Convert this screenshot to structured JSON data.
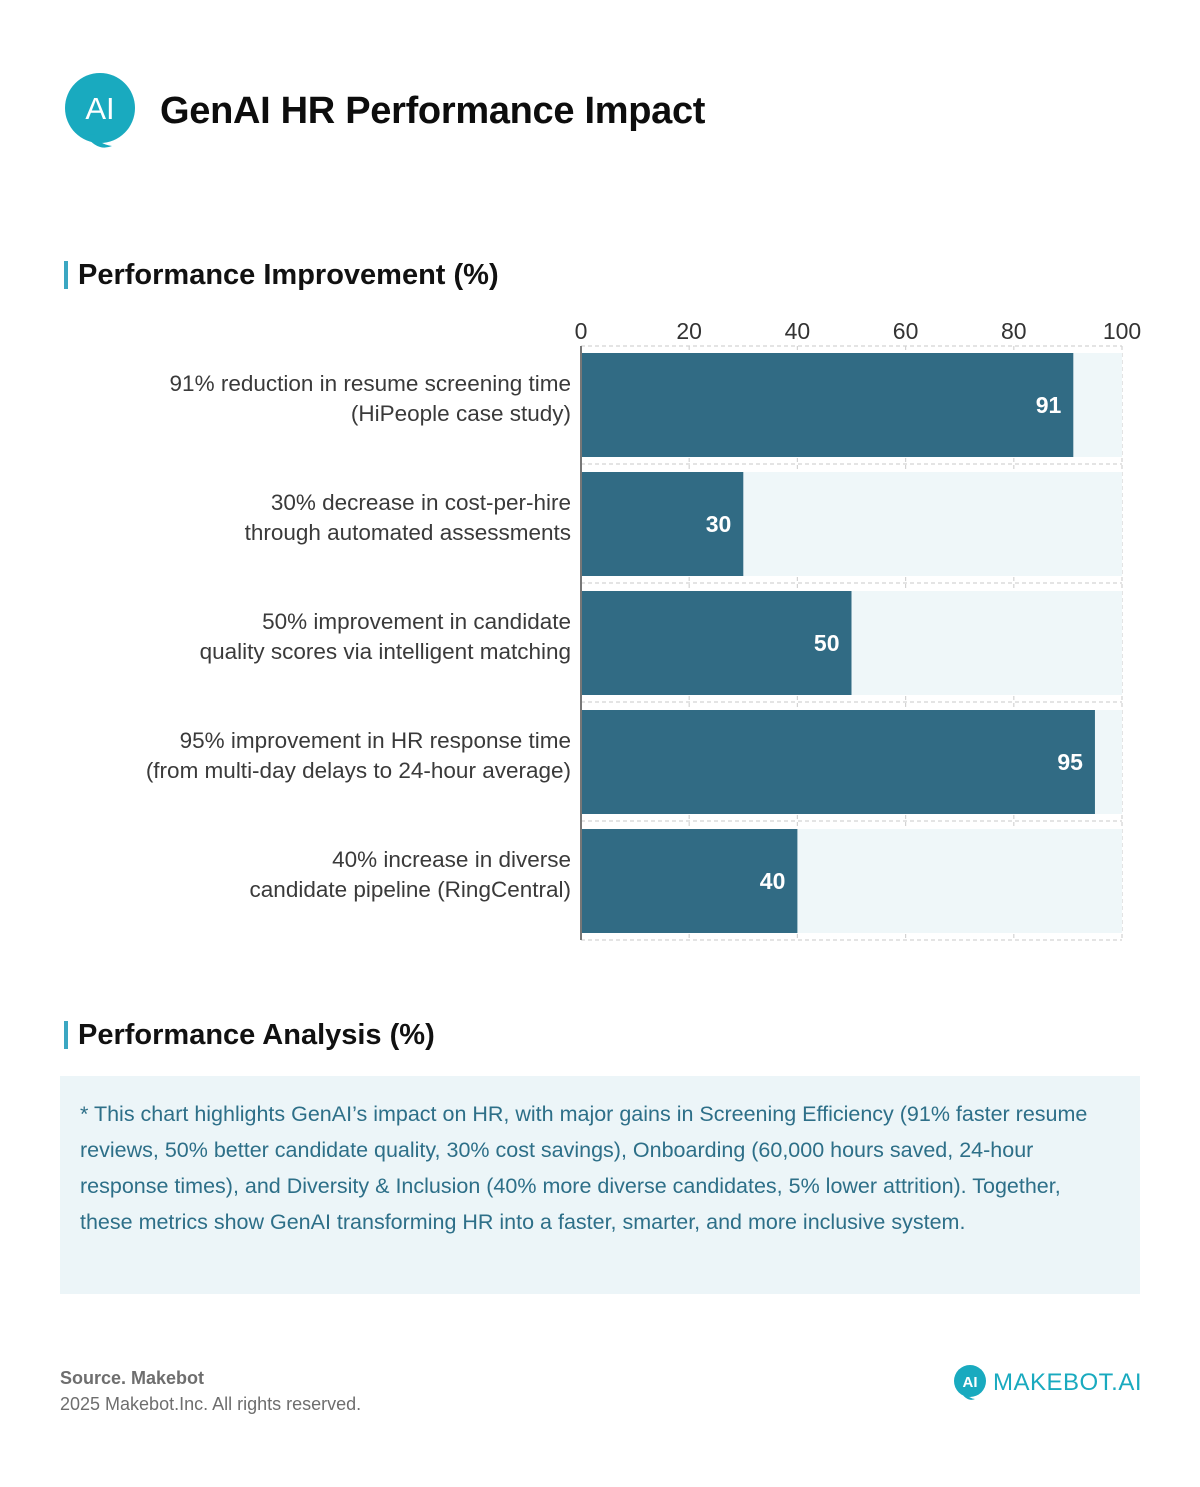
{
  "header": {
    "logo_text": "AI",
    "title": "GenAI HR Performance Impact"
  },
  "chart_data": {
    "type": "bar",
    "orientation": "horizontal",
    "title": "Performance Improvement (%)",
    "xlabel": "",
    "ylabel": "",
    "xlim": [
      0,
      100
    ],
    "xticks": [
      0,
      20,
      40,
      60,
      80,
      100
    ],
    "axis_position": "top",
    "grid": true,
    "categories": [
      [
        "91% reduction in resume screening time",
        "(HiPeople case study)"
      ],
      [
        "30% decrease in cost-per-hire",
        "through automated assessments"
      ],
      [
        "50% improvement in candidate",
        "quality scores via intelligent matching"
      ],
      [
        "95% improvement in HR response time",
        "(from multi-day delays to 24-hour average)"
      ],
      [
        "40% increase in diverse",
        "candidate pipeline (RingCentral)"
      ]
    ],
    "values": [
      91,
      30,
      50,
      95,
      40
    ],
    "colors": {
      "bar": "#316b84",
      "track": "#eff7f9",
      "grid": "#d3d3d3",
      "axis": "#777777",
      "value_label": "#ffffff"
    }
  },
  "analysis": {
    "title": "Performance Analysis (%)",
    "text": "* This chart highlights GenAI’s impact on HR, with major gains in Screening Efficiency (91% faster resume reviews, 50% better candidate quality, 30% cost savings), Onboarding (60,000 hours saved, 24-hour response times), and Diversity & Inclusion (40% more diverse candidates, 5% lower attrition). Together, these metrics show GenAI transforming HR into a faster, smarter, and more inclusive system."
  },
  "footer": {
    "source": "Source. Makebot",
    "copyright": "2025 Makebot.Inc. All rights reserved.",
    "brand_icon_text": "AI",
    "brand_text": "MAKEBOT.AI"
  },
  "colors": {
    "accent": "#3ba7c2",
    "logo": "#19aabf",
    "analysis_bg": "#ecf5f8",
    "analysis_text": "#2d6f88"
  }
}
